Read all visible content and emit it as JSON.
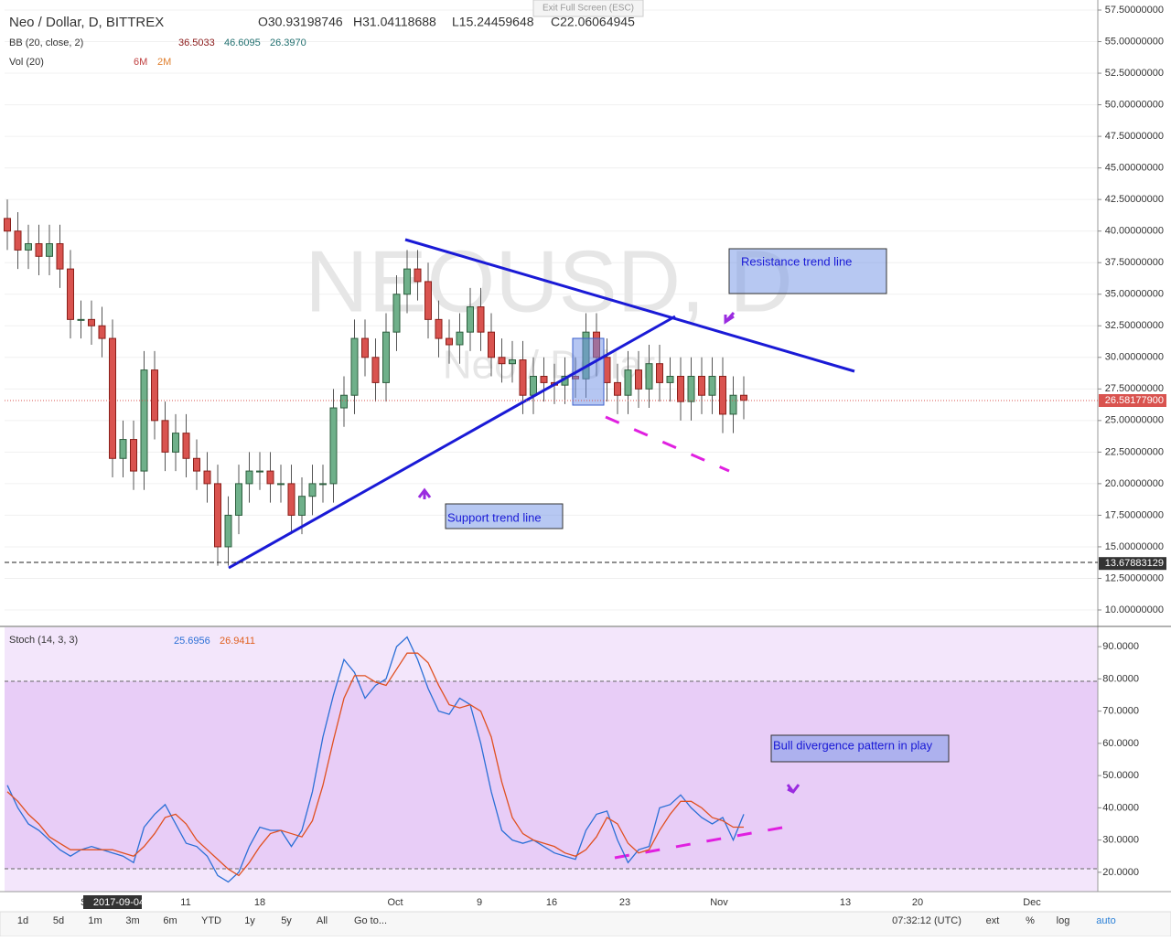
{
  "header": {
    "symbol": "Neo / Dollar, D, BITTREX",
    "open": "O30.93198746",
    "high": "H31.04118688",
    "low": "L15.24459648",
    "close": "C22.06064945",
    "exit": "Exit Full Screen (ESC)"
  },
  "bb": {
    "label": "BB (20, close, 2)",
    "values": [
      "36.5033",
      "46.6095",
      "26.3970"
    ]
  },
  "vol": {
    "label": "Vol (20)",
    "values": [
      "6M",
      "2M"
    ]
  },
  "stoch": {
    "label": "Stoch (14, 3, 3)",
    "values": [
      "25.6956",
      "26.9411"
    ]
  },
  "watermark": {
    "big": "NEOUSD, D",
    "small": "Neo / Dollar"
  },
  "price_axis": {
    "ylim": [
      8.6,
      58.3
    ],
    "yticks": [
      {
        "value": 57.5,
        "label": "57.50000000"
      },
      {
        "value": 55,
        "label": "55.00000000"
      },
      {
        "value": 52.5,
        "label": "52.50000000"
      },
      {
        "value": 50,
        "label": "50.00000000"
      },
      {
        "value": 47.5,
        "label": "47.50000000"
      },
      {
        "value": 45,
        "label": "45.00000000"
      },
      {
        "value": 42.5,
        "label": "42.50000000"
      },
      {
        "value": 40,
        "label": "40.00000000"
      },
      {
        "value": 37.5,
        "label": "37.50000000"
      },
      {
        "value": 35,
        "label": "35.00000000"
      },
      {
        "value": 32.5,
        "label": "32.50000000"
      },
      {
        "value": 30,
        "label": "30.00000000"
      },
      {
        "value": 27.5,
        "label": "27.50000000"
      },
      {
        "value": 25,
        "label": "25.00000000"
      },
      {
        "value": 22.5,
        "label": "22.50000000"
      },
      {
        "value": 20,
        "label": "20.00000000"
      },
      {
        "value": 17.5,
        "label": "17.50000000"
      },
      {
        "value": 15,
        "label": "15.00000000"
      },
      {
        "value": 12.5,
        "label": "12.50000000"
      },
      {
        "value": 10,
        "label": "10.00000000"
      }
    ],
    "last": {
      "value": 26.581779,
      "label": "26.58177900"
    },
    "hline": {
      "value": 13.67883129,
      "label": "13.67883129"
    }
  },
  "candles": {
    "open": [
      41,
      40,
      38.5,
      39,
      38,
      39,
      37,
      33,
      33,
      32.5,
      31.5,
      22,
      23.5,
      21,
      29,
      25,
      22.5,
      24,
      22,
      21,
      20,
      15,
      17.5,
      20,
      21,
      21,
      20,
      20,
      17.5,
      19,
      20,
      20,
      26,
      27,
      31.5,
      30,
      28,
      32,
      35,
      37,
      36,
      33,
      31.5,
      31,
      32,
      34,
      32,
      30,
      29.5,
      29.8,
      27,
      28.5,
      28,
      27.8,
      28.5,
      28.3,
      32,
      30,
      28,
      27,
      29,
      27.5,
      29.5,
      28,
      28.5,
      26.5,
      28.5,
      27,
      28.5,
      25.5,
      27
    ],
    "high": [
      42.5,
      41.5,
      40.5,
      40.5,
      40.5,
      40.5,
      38.5,
      34.5,
      34.5,
      34,
      33,
      25,
      25,
      30.5,
      30.5,
      26.5,
      25.5,
      25.5,
      23.5,
      22.5,
      21.5,
      19,
      21.5,
      22.5,
      22.5,
      22.5,
      21.5,
      21.5,
      20.5,
      21.5,
      21.5,
      27.5,
      28.5,
      33,
      33,
      31.5,
      33.5,
      36.5,
      38.5,
      38.5,
      37.5,
      34.5,
      33,
      33.5,
      35.5,
      35.5,
      33.5,
      31.5,
      31.3,
      31.3,
      30,
      30,
      29.5,
      30,
      30,
      33.5,
      33.5,
      31.5,
      29.5,
      30.5,
      30.5,
      31,
      31,
      30,
      30,
      30,
      30,
      30,
      30,
      28.5,
      28.5
    ],
    "low": [
      38.5,
      37,
      37,
      36.5,
      36.5,
      35.5,
      31.5,
      31.5,
      31,
      30,
      20.5,
      20.5,
      19.5,
      19.5,
      23.5,
      21,
      21,
      20.5,
      19.5,
      18.5,
      13.5,
      13.5,
      16,
      18.5,
      19.5,
      18.5,
      18.5,
      16,
      16,
      17.5,
      18.5,
      18.5,
      24.5,
      25.5,
      28.5,
      26.5,
      26.5,
      30.5,
      33.5,
      34.5,
      31.5,
      30,
      29.5,
      29.5,
      30.5,
      30.5,
      28.5,
      28,
      28,
      25.5,
      25.5,
      26.5,
      26.3,
      26.3,
      26.8,
      26.8,
      28.5,
      26.5,
      25.5,
      25.5,
      26,
      26,
      26.5,
      26.5,
      25,
      25,
      25.5,
      25.5,
      24,
      24,
      25.1
    ],
    "close": [
      40,
      38.5,
      39,
      38,
      39,
      37,
      33,
      33,
      32.5,
      31.5,
      22,
      23.5,
      21,
      29,
      25,
      22.5,
      24,
      22,
      21,
      20,
      15,
      17.5,
      20,
      21,
      21,
      20,
      20,
      17.5,
      19,
      20,
      20,
      26,
      27,
      31.5,
      30,
      28,
      32,
      35,
      37,
      36,
      33,
      31.5,
      31,
      32,
      34,
      32,
      30,
      29.5,
      29.8,
      27,
      28.5,
      28,
      27.8,
      28.5,
      28.3,
      32,
      30,
      28,
      27,
      29,
      27.5,
      29.5,
      28,
      28.5,
      26.5,
      28.5,
      27,
      28.5,
      25.5,
      27,
      26.6
    ]
  },
  "stoch_axis": {
    "ylim": [
      14,
      96
    ],
    "yticks": [
      {
        "value": 90,
        "label": "90.0000"
      },
      {
        "value": 80,
        "label": "80.0000"
      },
      {
        "value": 70,
        "label": "70.0000"
      },
      {
        "value": 60,
        "label": "60.0000"
      },
      {
        "value": 50,
        "label": "50.0000"
      },
      {
        "value": 40,
        "label": "40.0000"
      },
      {
        "value": 30,
        "label": "30.0000"
      },
      {
        "value": 20,
        "label": "20.0000"
      }
    ]
  },
  "stoch_k": [
    47,
    40,
    35,
    33,
    30,
    27,
    25,
    27,
    28,
    27,
    26,
    25,
    23,
    34,
    38,
    41,
    35,
    29,
    28,
    25,
    19,
    17,
    20,
    28,
    34,
    33,
    33,
    28,
    33,
    45,
    62,
    75,
    86,
    82,
    74,
    78,
    80,
    90,
    93,
    86,
    77,
    70,
    69,
    74,
    72,
    60,
    45,
    33,
    30,
    29,
    30,
    28,
    26,
    25,
    24,
    33,
    38,
    39,
    30,
    23,
    27,
    28,
    40,
    41,
    44,
    40,
    37,
    35,
    37,
    30,
    38
  ],
  "stoch_d": [
    45,
    42,
    38,
    35,
    31,
    29,
    27,
    27,
    27,
    27,
    27,
    26,
    25,
    28,
    32,
    37,
    38,
    35,
    30,
    27,
    24,
    21,
    19,
    23,
    28,
    32,
    33,
    32,
    31,
    36,
    47,
    61,
    74,
    81,
    81,
    79,
    78,
    83,
    88,
    88,
    85,
    78,
    72,
    71,
    72,
    70,
    62,
    48,
    37,
    32,
    30,
    29,
    28,
    26,
    25,
    27,
    31,
    37,
    35,
    29,
    26,
    27,
    33,
    38,
    42,
    42,
    40,
    37,
    36,
    34,
    34
  ],
  "x_axis": [
    "Se",
    "2017-09-04",
    "11",
    "18",
    "Oct",
    "9",
    "16",
    "23",
    "Nov",
    "13",
    "20",
    "Dec"
  ],
  "annotations": [
    "Resistance trend line",
    "Support trend line",
    "Bull divergence pattern in play"
  ],
  "toolbar": {
    "left": [
      "1d",
      "5d",
      "1m",
      "3m",
      "6m",
      "YTD",
      "1y",
      "5y",
      "All",
      "Go to..."
    ],
    "right": [
      "07:32:12 (UTC)",
      "ext",
      "%",
      "log",
      "auto"
    ]
  }
}
